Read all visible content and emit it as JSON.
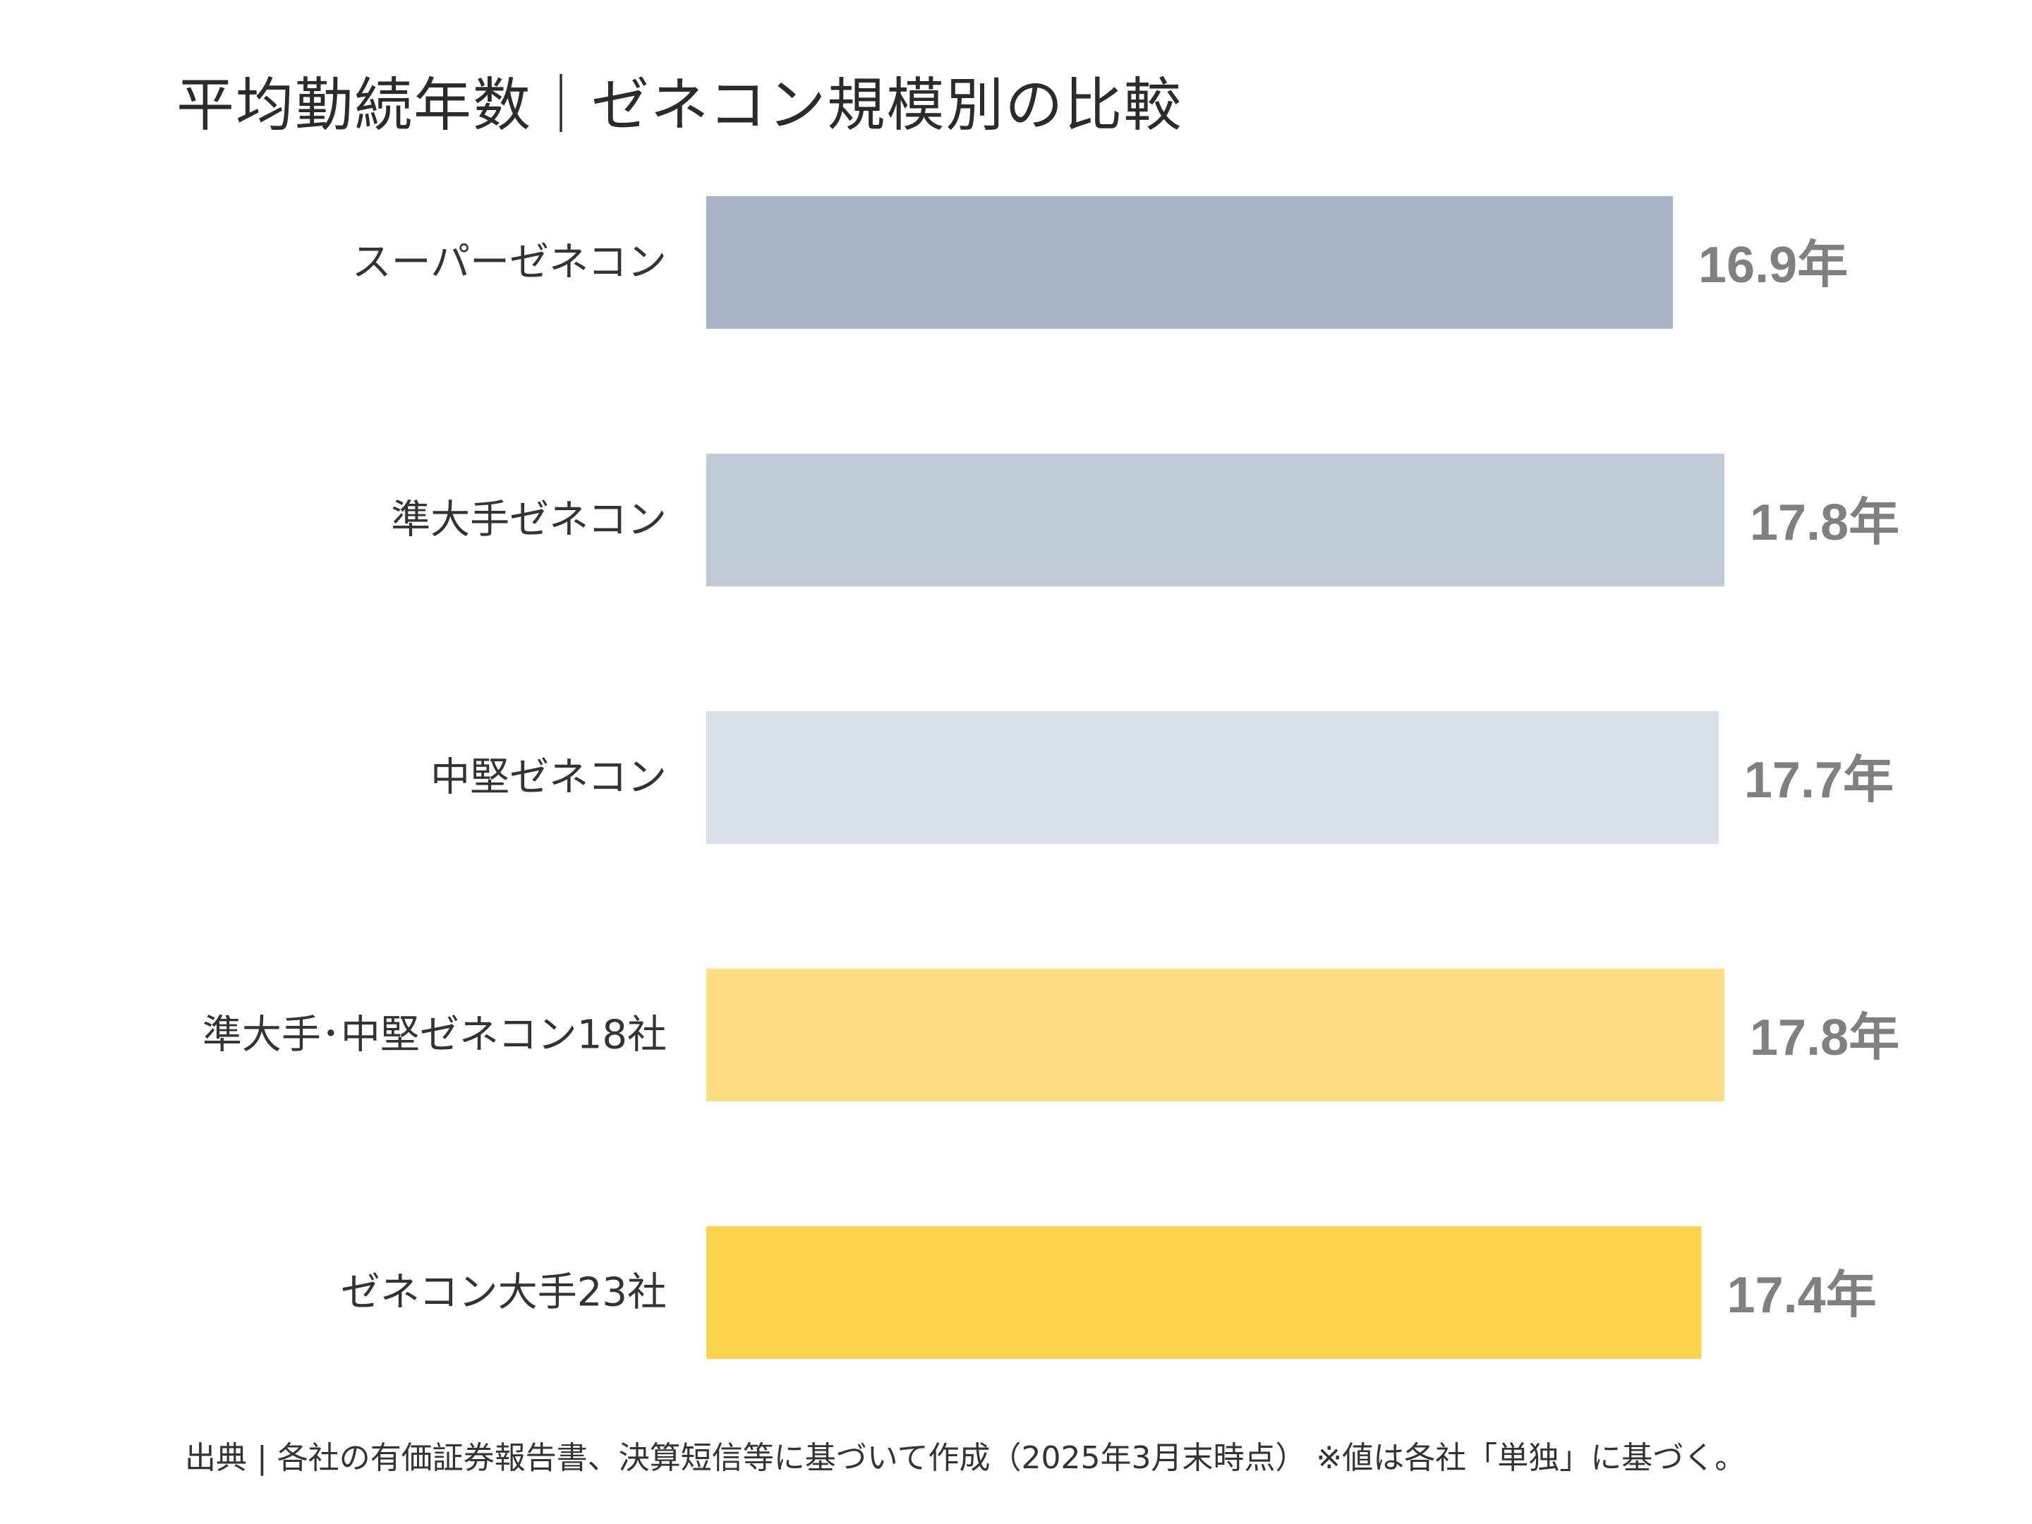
{
  "chart_data": {
    "type": "bar",
    "orientation": "horizontal",
    "title": "平均勤続年数｜ゼネコン規模別の比較",
    "categories": [
      "スーパーゼネコン",
      "準大手ゼネコン",
      "中堅ゼネコン",
      "準大手･中堅ゼネコン18社",
      "ゼネコン大手23社"
    ],
    "values": [
      16.9,
      17.8,
      17.7,
      17.8,
      17.4
    ],
    "value_labels": [
      "16.9年",
      "17.8年",
      "17.7年",
      "17.8年",
      "17.4年"
    ],
    "colors": [
      "#A7B4C6",
      "#C0CAD6",
      "#D9E0E8",
      "#FEDE84",
      "#FCD34C"
    ],
    "unit": "年",
    "xlim": [
      0,
      17.8
    ],
    "xlabel": "",
    "ylabel": "",
    "grid": false,
    "source": "出典 | 各社の有価証券報告書、決算短信等に基づいて作成（2025年3月末時点） ※値は各社「単独」に基づく。"
  }
}
